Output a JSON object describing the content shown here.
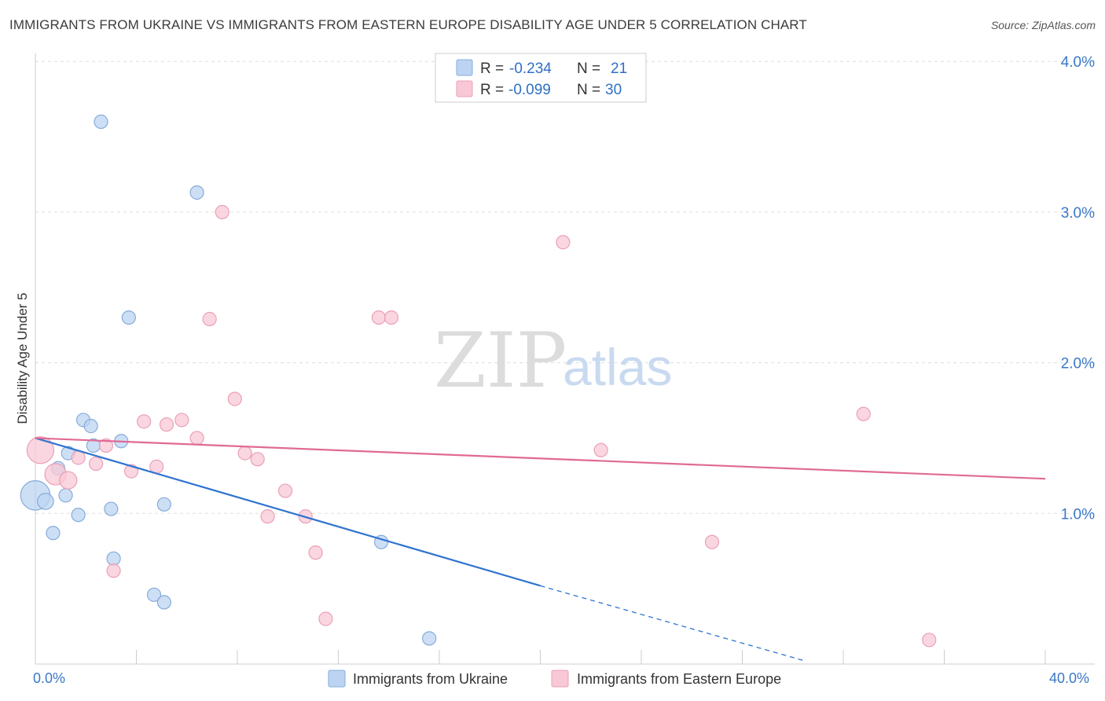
{
  "title": "IMMIGRANTS FROM UKRAINE VS IMMIGRANTS FROM EASTERN EUROPE DISABILITY AGE UNDER 5 CORRELATION CHART",
  "source": "Source: ZipAtlas.com",
  "watermark": {
    "zip": "ZIP",
    "atlas": "atlas"
  },
  "legend": {
    "rows": [
      {
        "r_label": "R =",
        "r_value": "-0.234",
        "n_label": "N =",
        "n_value": "21"
      },
      {
        "r_label": "R =",
        "r_value": "-0.099",
        "n_label": "N =",
        "n_value": "30"
      }
    ]
  },
  "colors": {
    "ukraine_fill": "#bcd4f2",
    "ukraine_stroke": "#86acd9",
    "ukraine_line": "#2f74d0",
    "eastern_fill": "#f8c8d6",
    "eastern_stroke": "#eba0b6",
    "eastern_line": "#e06a93",
    "axis_label": "#3a78c8",
    "grid": "#dddddd"
  },
  "chart_data": {
    "type": "scatter",
    "title": "IMMIGRANTS FROM UKRAINE VS IMMIGRANTS FROM EASTERN EUROPE DISABILITY AGE UNDER 5 CORRELATION CHART",
    "xlabel": "",
    "ylabel": "Disability Age Under 5",
    "xlim": [
      0,
      40
    ],
    "ylim": [
      0,
      4.1
    ],
    "x_tick_labels": [
      "0.0%",
      "40.0%"
    ],
    "y_ticks": [
      1.0,
      2.0,
      3.0,
      4.0
    ],
    "y_tick_labels": [
      "1.0%",
      "2.0%",
      "3.0%",
      "4.0%"
    ],
    "series": [
      {
        "name": "Immigrants from Ukraine",
        "r": -0.234,
        "n": 21,
        "points": [
          {
            "x": 2.6,
            "y": 3.6,
            "s": 1
          },
          {
            "x": 6.4,
            "y": 3.13,
            "s": 1
          },
          {
            "x": 3.7,
            "y": 2.3,
            "s": 1
          },
          {
            "x": 1.9,
            "y": 1.62,
            "s": 1
          },
          {
            "x": 2.2,
            "y": 1.58,
            "s": 1
          },
          {
            "x": 3.4,
            "y": 1.48,
            "s": 1
          },
          {
            "x": 2.3,
            "y": 1.45,
            "s": 1
          },
          {
            "x": 1.3,
            "y": 1.4,
            "s": 1
          },
          {
            "x": 0.9,
            "y": 1.3,
            "s": 1
          },
          {
            "x": 0.0,
            "y": 1.12,
            "s": 2.2
          },
          {
            "x": 0.4,
            "y": 1.08,
            "s": 1.2
          },
          {
            "x": 1.2,
            "y": 1.12,
            "s": 1
          },
          {
            "x": 3.0,
            "y": 1.03,
            "s": 1
          },
          {
            "x": 5.1,
            "y": 1.06,
            "s": 1
          },
          {
            "x": 1.7,
            "y": 0.99,
            "s": 1
          },
          {
            "x": 0.7,
            "y": 0.87,
            "s": 1
          },
          {
            "x": 13.7,
            "y": 0.81,
            "s": 1
          },
          {
            "x": 3.1,
            "y": 0.7,
            "s": 1
          },
          {
            "x": 4.7,
            "y": 0.46,
            "s": 1
          },
          {
            "x": 5.1,
            "y": 0.41,
            "s": 1
          },
          {
            "x": 15.6,
            "y": 0.17,
            "s": 1
          }
        ],
        "trend": {
          "x_start": 0,
          "y_start": 1.5,
          "x_solid_end": 20,
          "y_solid_end": 0.52,
          "x_dash_end": 30.5,
          "y_dash_end": 0.02
        }
      },
      {
        "name": "Immigrants from Eastern Europe",
        "r": -0.099,
        "n": 30,
        "points": [
          {
            "x": 7.4,
            "y": 3.0,
            "s": 1
          },
          {
            "x": 20.9,
            "y": 2.8,
            "s": 1
          },
          {
            "x": 6.9,
            "y": 2.29,
            "s": 1
          },
          {
            "x": 13.6,
            "y": 2.3,
            "s": 1
          },
          {
            "x": 14.1,
            "y": 2.3,
            "s": 1
          },
          {
            "x": 7.9,
            "y": 1.76,
            "s": 1
          },
          {
            "x": 32.8,
            "y": 1.66,
            "s": 1
          },
          {
            "x": 4.3,
            "y": 1.61,
            "s": 1
          },
          {
            "x": 5.2,
            "y": 1.59,
            "s": 1
          },
          {
            "x": 5.8,
            "y": 1.62,
            "s": 1
          },
          {
            "x": 6.4,
            "y": 1.5,
            "s": 1
          },
          {
            "x": 2.8,
            "y": 1.45,
            "s": 1
          },
          {
            "x": 0.2,
            "y": 1.42,
            "s": 2.0
          },
          {
            "x": 8.3,
            "y": 1.4,
            "s": 1
          },
          {
            "x": 22.4,
            "y": 1.42,
            "s": 1
          },
          {
            "x": 1.7,
            "y": 1.37,
            "s": 1
          },
          {
            "x": 8.8,
            "y": 1.36,
            "s": 1
          },
          {
            "x": 2.4,
            "y": 1.33,
            "s": 1
          },
          {
            "x": 4.8,
            "y": 1.31,
            "s": 1
          },
          {
            "x": 3.8,
            "y": 1.28,
            "s": 1
          },
          {
            "x": 0.8,
            "y": 1.26,
            "s": 1.6
          },
          {
            "x": 1.3,
            "y": 1.22,
            "s": 1.3
          },
          {
            "x": 9.9,
            "y": 1.15,
            "s": 1
          },
          {
            "x": 9.2,
            "y": 0.98,
            "s": 1
          },
          {
            "x": 10.7,
            "y": 0.98,
            "s": 1
          },
          {
            "x": 26.8,
            "y": 0.81,
            "s": 1
          },
          {
            "x": 11.1,
            "y": 0.74,
            "s": 1
          },
          {
            "x": 3.1,
            "y": 0.62,
            "s": 1
          },
          {
            "x": 11.5,
            "y": 0.3,
            "s": 1
          },
          {
            "x": 35.4,
            "y": 0.16,
            "s": 1
          }
        ],
        "trend": {
          "x_start": 0,
          "y_start": 1.5,
          "x_end": 40,
          "y_end": 1.23
        }
      }
    ]
  }
}
